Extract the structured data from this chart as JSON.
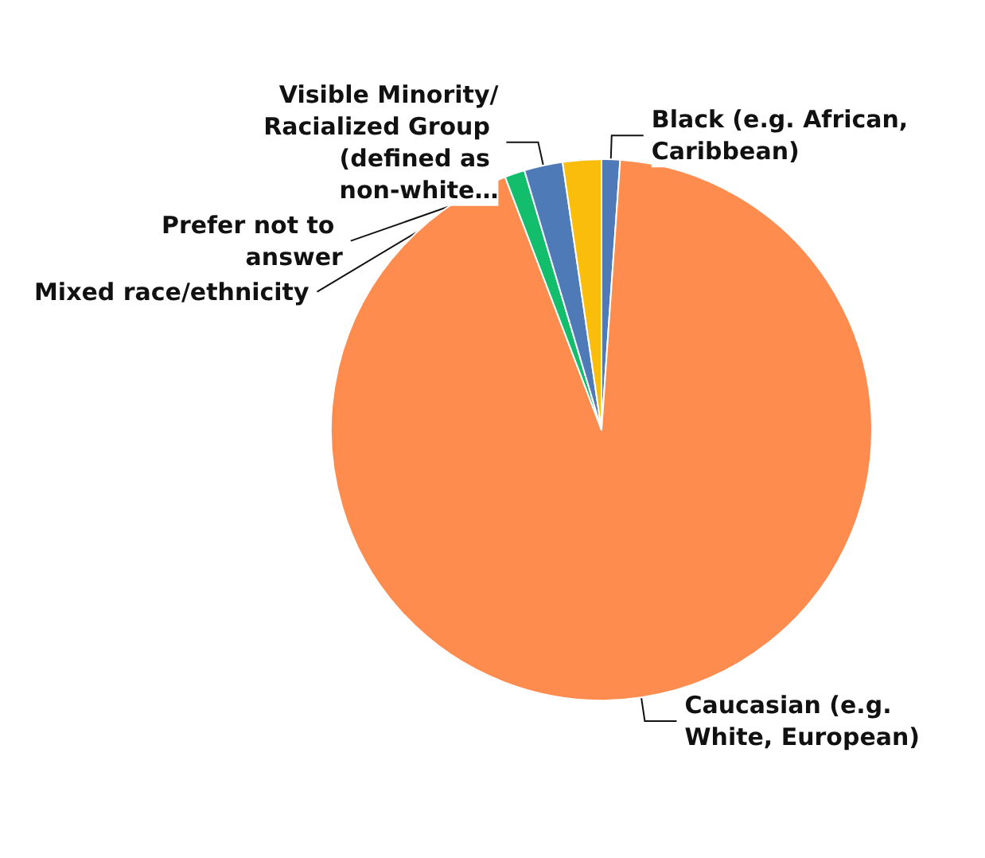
{
  "chart_data": {
    "type": "pie",
    "categories": [
      "Black (e.g. African, Caribbean)",
      "Caucasian (e.g. White, European)",
      "Mixed race/ethnicity",
      "Visible Minority/Racialized Group (defined as non-white…",
      "Prefer not to answer"
    ],
    "values": [
      1.1,
      93.1,
      1.2,
      2.3,
      2.3
    ],
    "colors": [
      "#4f7ab8",
      "#fd8c4e",
      "#12be6c",
      "#4f7ab8",
      "#fbbd0b"
    ],
    "legend": false
  }
}
